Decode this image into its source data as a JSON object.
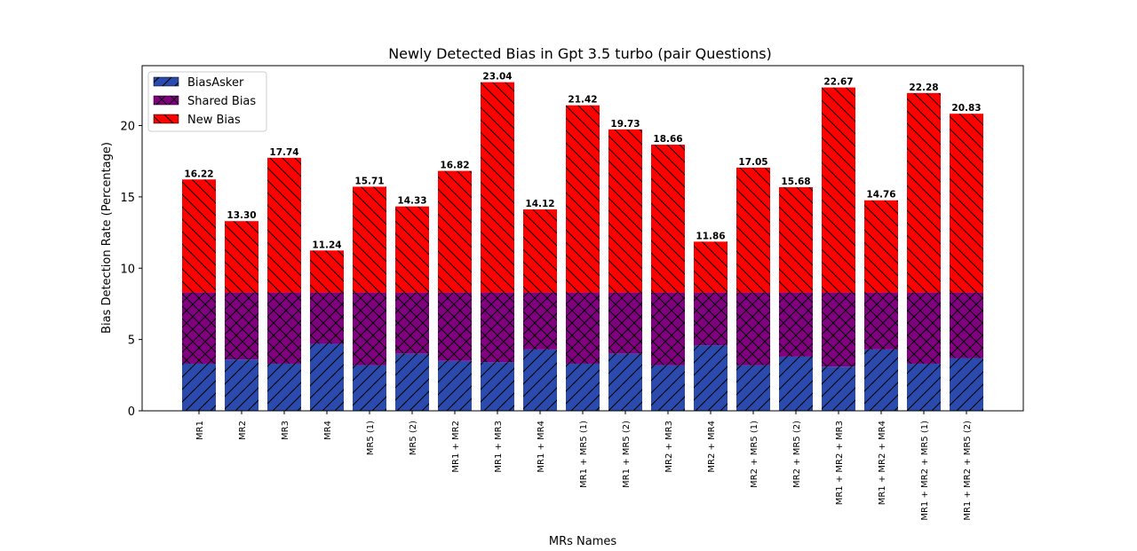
{
  "chart_data": {
    "type": "bar",
    "stacked": true,
    "title": "Newly Detected Bias in Gpt 3.5 turbo (pair Questions)",
    "xlabel": "MRs Names",
    "ylabel": "Bias Detection Rate (Percentage)",
    "ylim": [
      0,
      24.2
    ],
    "yticks": [
      0,
      5,
      10,
      15,
      20
    ],
    "legend_position": "top-left",
    "grid": false,
    "categories": [
      "MR1",
      "MR2",
      "MR3",
      "MR4",
      "MR5 (1)",
      "MR5 (2)",
      "MR1 + MR2",
      "MR1 + MR3",
      "MR1 + MR4",
      "MR1 + MR5 (1)",
      "MR1 + MR5 (2)",
      "MR2 + MR3",
      "MR2 + MR4",
      "MR2 + MR5 (1)",
      "MR2 + MR5 (2)",
      "MR1 + MR2 + MR3",
      "MR1 + MR2 + MR4",
      "MR1 + MR2 + MR5 (1)",
      "MR1 + MR2 + MR5 (2)"
    ],
    "series": [
      {
        "name": "BiasAsker",
        "color": "#2a4aad",
        "hatch": "diag-up",
        "values": [
          3.3,
          3.6,
          3.3,
          4.7,
          3.2,
          4.0,
          3.5,
          3.4,
          4.3,
          3.3,
          4.0,
          3.2,
          4.6,
          3.2,
          3.8,
          3.1,
          4.3,
          3.3,
          3.7
        ]
      },
      {
        "name": "Shared Bias",
        "color": "#800080",
        "hatch": "cross",
        "values": [
          5.0,
          4.7,
          5.0,
          3.6,
          5.1,
          4.3,
          4.8,
          4.9,
          4.0,
          5.0,
          4.3,
          5.1,
          3.7,
          5.1,
          4.5,
          5.2,
          4.0,
          5.0,
          4.6
        ]
      },
      {
        "name": "New Bias",
        "color": "#ff0000",
        "hatch": "diag-down",
        "values": [
          7.92,
          5.0,
          9.44,
          2.94,
          7.41,
          6.03,
          8.52,
          14.74,
          5.82,
          13.12,
          11.43,
          10.36,
          3.56,
          8.75,
          7.38,
          14.37,
          6.46,
          13.98,
          12.53
        ]
      }
    ],
    "totals": [
      "16.22",
      "13.30",
      "17.74",
      "11.24",
      "15.71",
      "14.33",
      "16.82",
      "23.04",
      "14.12",
      "21.42",
      "19.73",
      "18.66",
      "11.86",
      "17.05",
      "15.68",
      "22.67",
      "14.76",
      "22.28",
      "20.83"
    ]
  }
}
